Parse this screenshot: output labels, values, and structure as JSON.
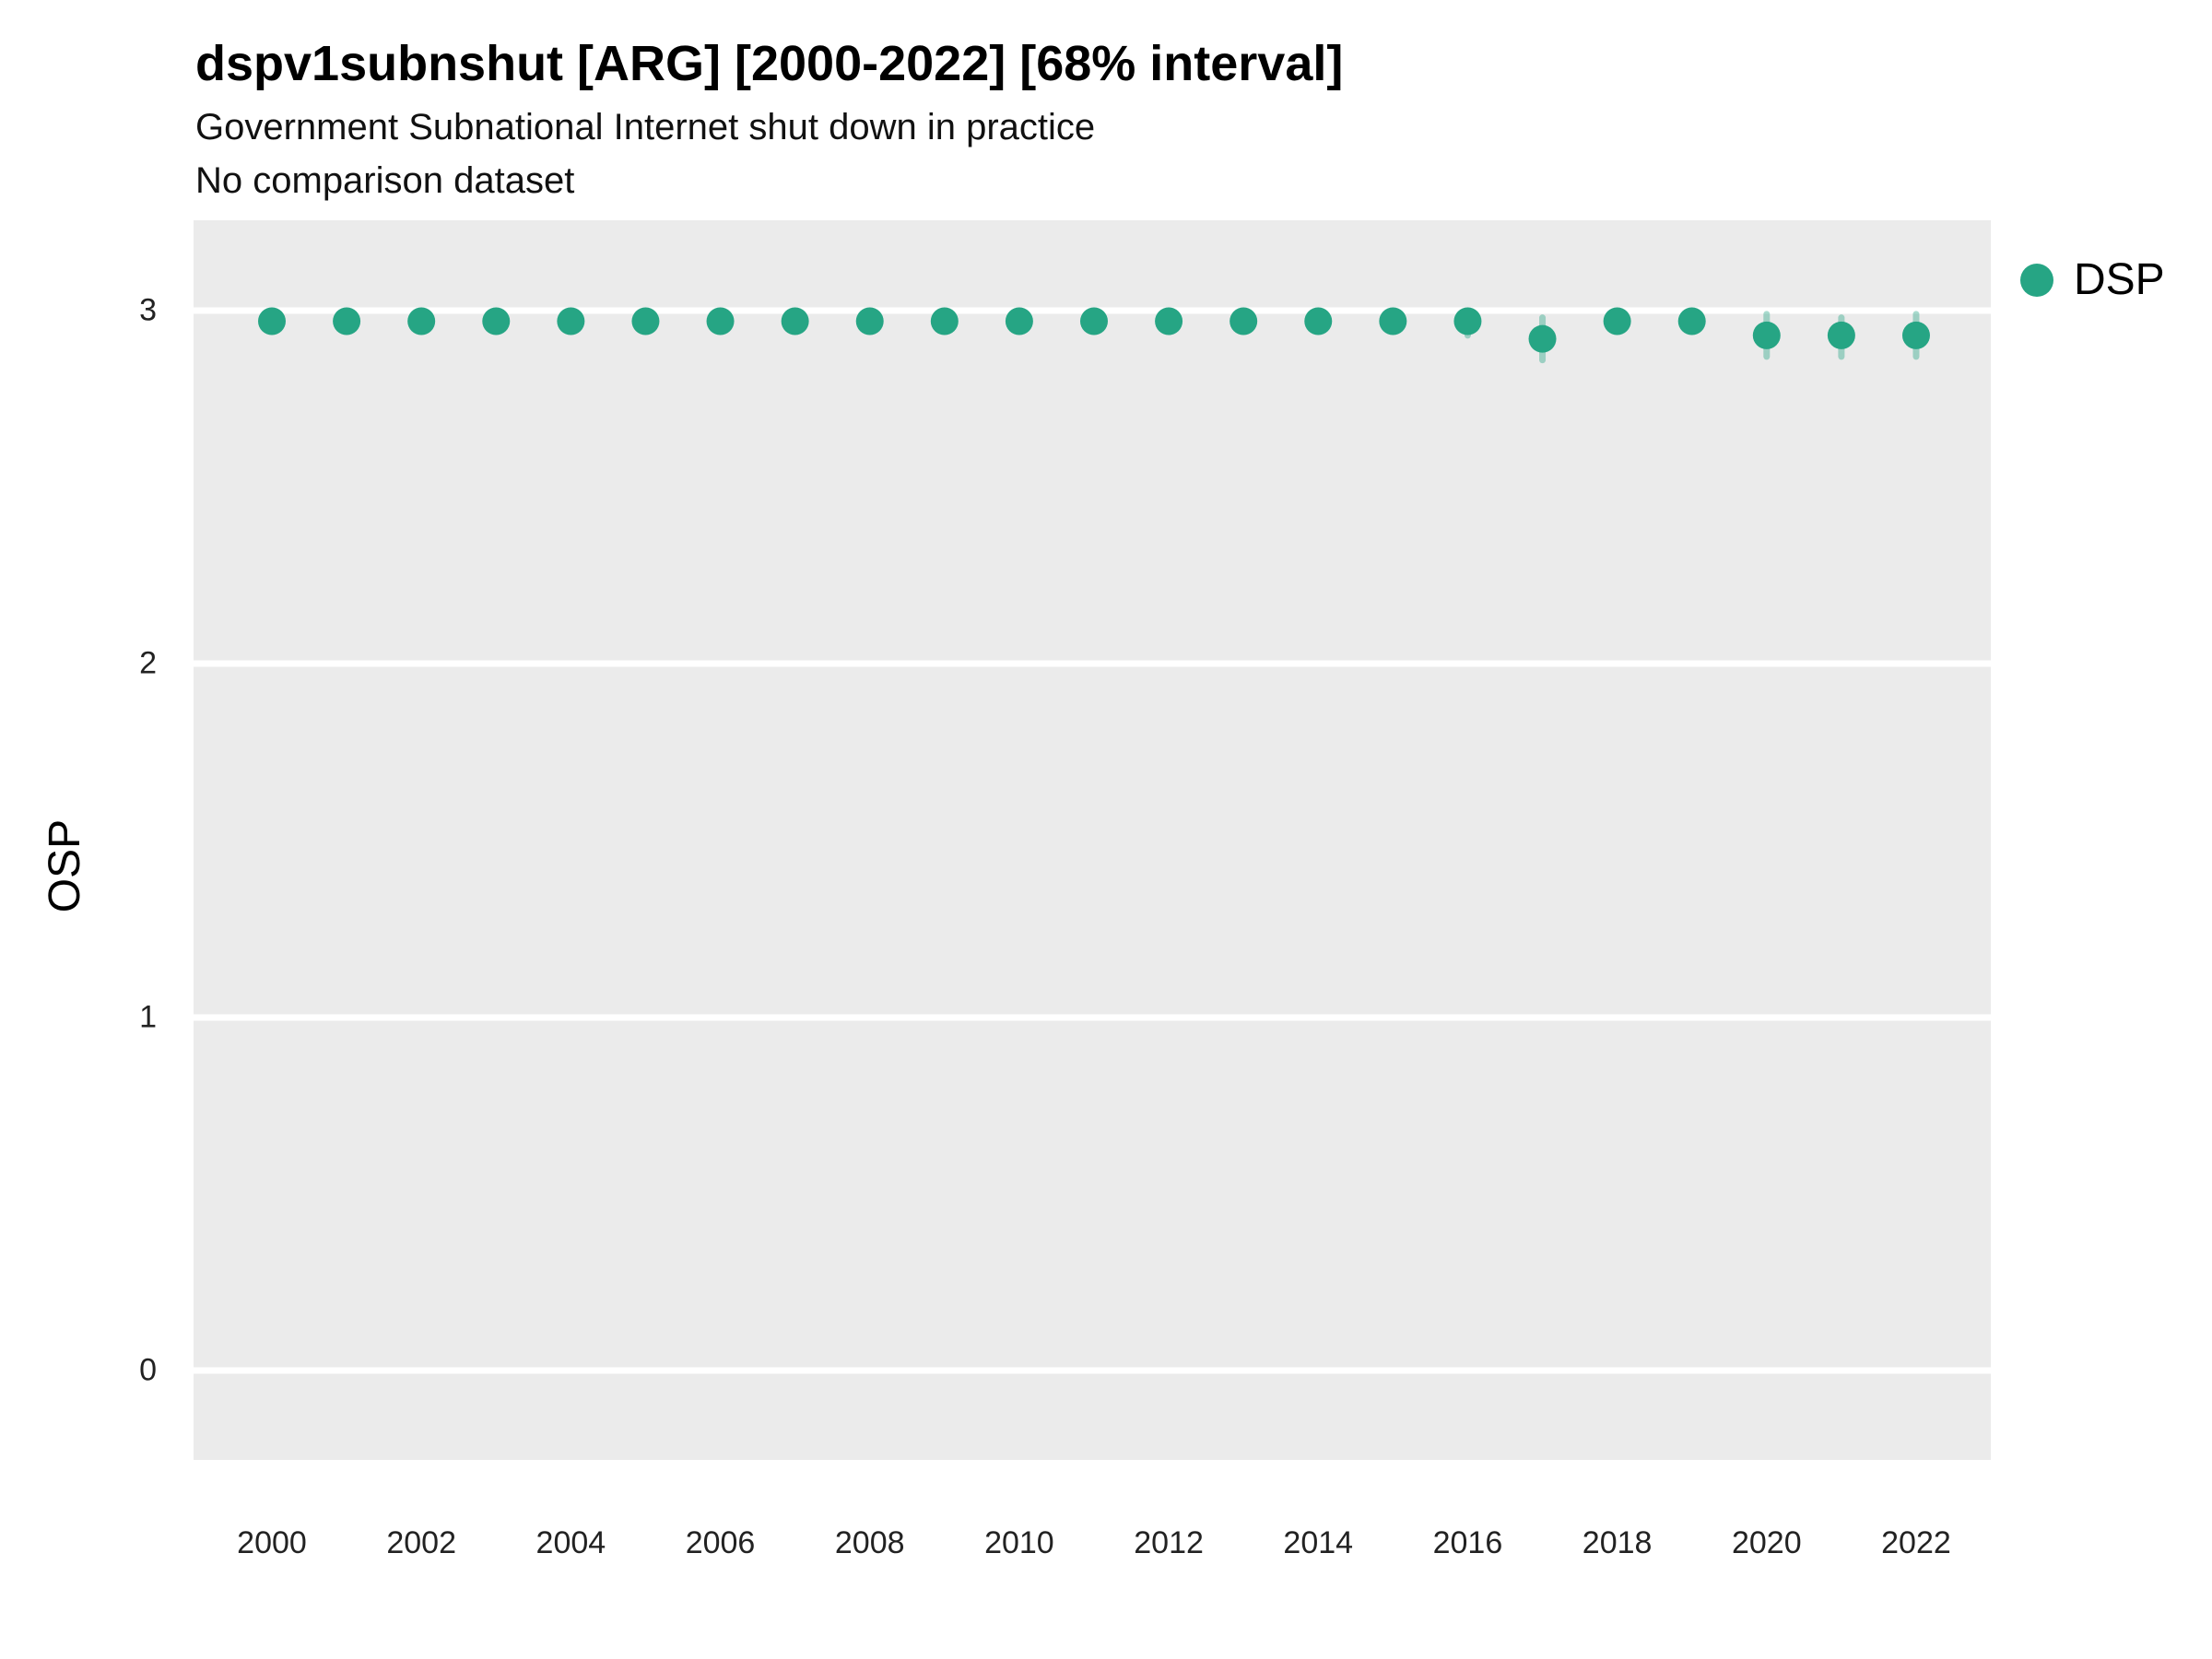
{
  "header": {
    "title": "dspv1subnshut [ARG] [2000-2022] [68% interval]",
    "subtitle": "Government Subnational Internet shut down in practice",
    "note": "No comparison dataset"
  },
  "legend": {
    "label": "DSP"
  },
  "axes": {
    "y_label": "OSP",
    "y_ticks": [
      0,
      1,
      2,
      3
    ],
    "x_ticks": [
      2000,
      2002,
      2004,
      2006,
      2008,
      2010,
      2012,
      2014,
      2016,
      2018,
      2020,
      2022
    ]
  },
  "colors": {
    "point": "#26a584",
    "interval": "rgba(38,165,132,0.40)",
    "panel_bg": "#ebebeb",
    "gridline": "#ffffff"
  },
  "chart_data": {
    "type": "scatter",
    "title": "dspv1subnshut [ARG] [2000-2022] [68% interval]",
    "subtitle": "Government Subnational Internet shut down in practice",
    "note": "No comparison dataset",
    "xlabel": "",
    "ylabel": "OSP",
    "ylim": [
      0,
      3
    ],
    "interval": "68%",
    "legend_position": "right",
    "grid": true,
    "x": [
      2000,
      2001,
      2002,
      2003,
      2004,
      2005,
      2006,
      2007,
      2008,
      2009,
      2010,
      2011,
      2012,
      2013,
      2014,
      2015,
      2016,
      2017,
      2018,
      2019,
      2020,
      2021,
      2022
    ],
    "series": [
      {
        "name": "DSP",
        "values": [
          2.97,
          2.97,
          2.97,
          2.97,
          2.97,
          2.97,
          2.97,
          2.97,
          2.97,
          2.97,
          2.97,
          2.97,
          2.97,
          2.97,
          2.97,
          2.97,
          2.97,
          2.92,
          2.97,
          2.97,
          2.93,
          2.93,
          2.93
        ],
        "interval_low": [
          2.94,
          2.94,
          2.94,
          2.94,
          2.94,
          2.94,
          2.94,
          2.94,
          2.94,
          2.94,
          2.94,
          2.94,
          2.94,
          2.94,
          2.94,
          2.94,
          2.93,
          2.86,
          2.94,
          2.94,
          2.87,
          2.87,
          2.87
        ],
        "interval_high": [
          2.99,
          2.99,
          2.99,
          2.99,
          2.99,
          2.99,
          2.99,
          2.99,
          2.99,
          2.99,
          2.99,
          2.99,
          2.99,
          2.99,
          2.99,
          2.99,
          2.99,
          2.98,
          2.99,
          2.99,
          2.99,
          2.98,
          2.99
        ]
      }
    ]
  }
}
